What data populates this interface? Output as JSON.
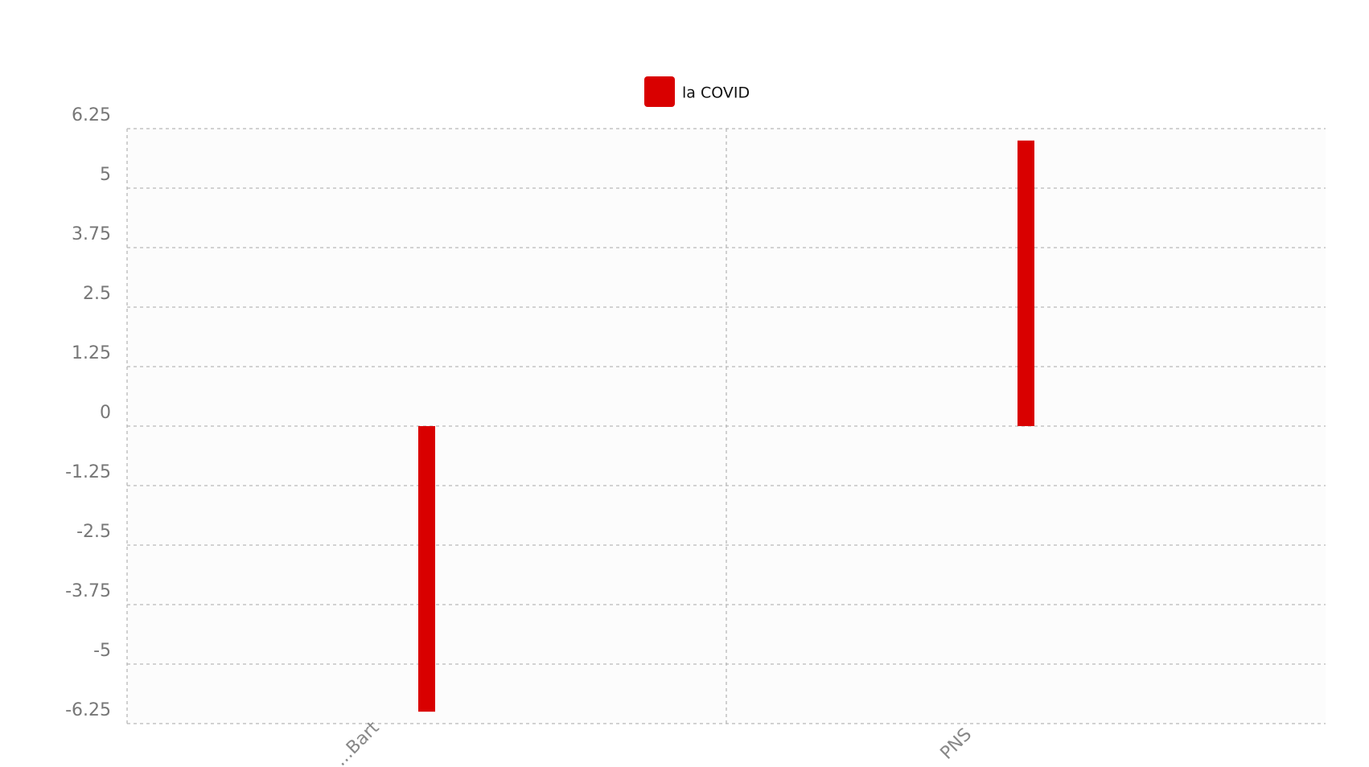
{
  "chart_data": {
    "type": "bar",
    "categories": [
      "...Bart",
      "PNS"
    ],
    "series": [
      {
        "name": "la COVID",
        "values": [
          -6.0,
          6.0
        ],
        "color": "#d90000"
      }
    ],
    "yticks": [
      "6.25",
      "5",
      "3.75",
      "2.5",
      "1.25",
      "0",
      "-1.25",
      "-2.5",
      "-3.75",
      "-5",
      "-6.25"
    ],
    "ylim": [
      -6.25,
      6.25
    ],
    "grid": true,
    "legend_position": "top-center",
    "xlabel": "",
    "ylabel": ""
  }
}
